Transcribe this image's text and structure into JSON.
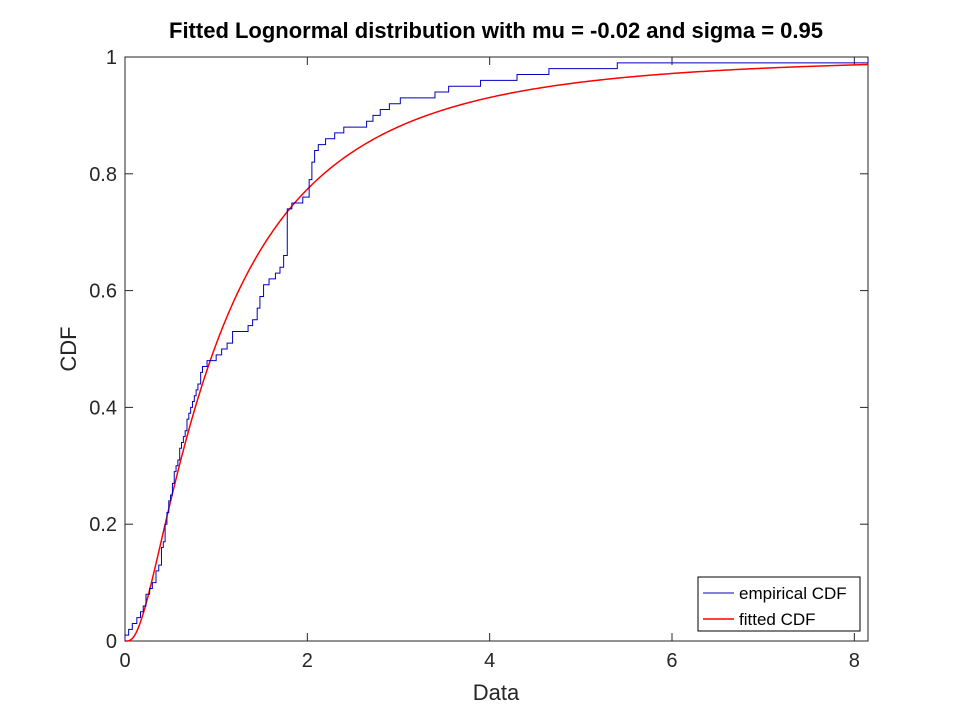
{
  "chart_data": {
    "type": "line",
    "title": "Fitted Lognormal distribution with mu = -0.02 and sigma = 0.95",
    "xlabel": "Data",
    "ylabel": "CDF",
    "xlim": [
      0,
      8.15
    ],
    "ylim": [
      0,
      1
    ],
    "xticks": [
      0,
      2,
      4,
      6,
      8
    ],
    "yticks": [
      0,
      0.2,
      0.4,
      0.6,
      0.8,
      1
    ],
    "xtick_labels": [
      "0",
      "2",
      "4",
      "6",
      "8"
    ],
    "ytick_labels": [
      "0",
      "0.2",
      "0.4",
      "0.6",
      "0.8",
      "1"
    ],
    "grid": false,
    "legend_position": "bottom-right",
    "lognormal_params": {
      "mu": -0.02,
      "sigma": 0.95
    },
    "series": [
      {
        "name": "empirical CDF",
        "style": "stairs",
        "color": "#0000c0",
        "x": [
          0,
          0.04,
          0.08,
          0.13,
          0.17,
          0.2,
          0.23,
          0.27,
          0.3,
          0.34,
          0.37,
          0.4,
          0.42,
          0.44,
          0.46,
          0.48,
          0.5,
          0.52,
          0.54,
          0.56,
          0.58,
          0.6,
          0.62,
          0.64,
          0.66,
          0.68,
          0.7,
          0.72,
          0.74,
          0.76,
          0.78,
          0.8,
          0.83,
          0.85,
          0.87,
          0.9,
          1.0,
          1.06,
          1.12,
          1.18,
          1.35,
          1.4,
          1.45,
          1.48,
          1.52,
          1.58,
          1.65,
          1.7,
          1.74,
          1.78,
          1.83,
          1.95,
          2.02,
          2.05,
          2.08,
          2.12,
          2.2,
          2.3,
          2.4,
          2.65,
          2.72,
          2.8,
          2.9,
          3.02,
          3.4,
          3.55,
          3.9,
          4.3,
          4.65,
          4.85,
          5.4,
          8.15
        ],
        "y": [
          0.01,
          0.02,
          0.03,
          0.04,
          0.05,
          0.06,
          0.08,
          0.09,
          0.1,
          0.12,
          0.13,
          0.16,
          0.17,
          0.2,
          0.22,
          0.24,
          0.25,
          0.27,
          0.29,
          0.3,
          0.31,
          0.33,
          0.34,
          0.35,
          0.36,
          0.38,
          0.39,
          0.4,
          0.41,
          0.42,
          0.43,
          0.44,
          0.46,
          0.47,
          0.47,
          0.48,
          0.49,
          0.5,
          0.51,
          0.53,
          0.54,
          0.55,
          0.57,
          0.59,
          0.61,
          0.62,
          0.63,
          0.64,
          0.66,
          0.74,
          0.75,
          0.76,
          0.79,
          0.82,
          0.84,
          0.85,
          0.86,
          0.87,
          0.88,
          0.89,
          0.9,
          0.91,
          0.92,
          0.93,
          0.94,
          0.95,
          0.96,
          0.97,
          0.98,
          0.98,
          0.99,
          1.0
        ]
      },
      {
        "name": "fitted CDF",
        "style": "line",
        "color": "#ff0000"
      }
    ]
  }
}
